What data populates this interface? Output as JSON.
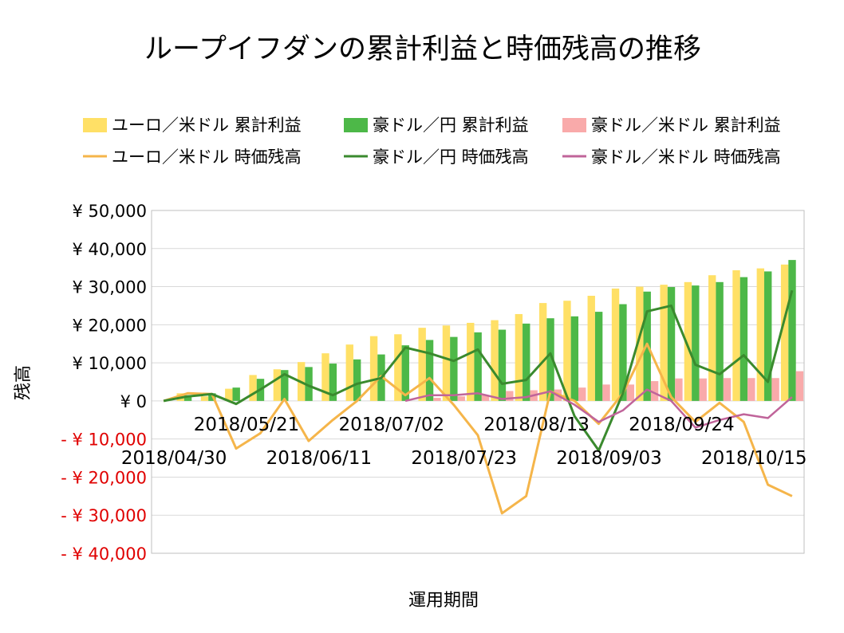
{
  "chart_data": {
    "type": "bar",
    "title": "ループイフダンの累計利益と時価残高の推移",
    "xlabel": "運用期間",
    "ylabel": "残高",
    "ylim": [
      -40000,
      50000
    ],
    "y_ticks": [
      50000,
      40000,
      30000,
      20000,
      10000,
      0,
      -10000,
      -20000,
      -30000,
      -40000
    ],
    "y_tick_labels": [
      "¥ 50,000",
      "¥ 40,000",
      "¥ 30,000",
      "¥ 20,000",
      "¥ 10,000",
      "¥ 0",
      "- ¥ 10,000",
      "- ¥ 20,000",
      "- ¥ 30,000",
      "- ¥ 40,000"
    ],
    "x_tick_labels_upper": [
      "2018/05/21",
      "2018/07/02",
      "2018/08/13",
      "2018/09/24"
    ],
    "x_tick_labels_lower": [
      "2018/04/30",
      "2018/06/11",
      "2018/07/23",
      "2018/09/03",
      "2018/10/15"
    ],
    "x_count": 27,
    "grid": true,
    "legend_position": "top",
    "colors": {
      "eur_profit": "#FFE066",
      "aud_jpy_profit": "#4DB848",
      "aud_usd_profit": "#F9AAAA",
      "eur_value": "#F5B54A",
      "aud_jpy_value": "#3A8A2E",
      "aud_usd_value": "#C0649A",
      "negative_label": "#E00000",
      "axis": "#BFBFBF"
    },
    "bar_series": [
      {
        "name": "ユーロ／米ドル 累計利益",
        "values": [
          0,
          2000,
          1200,
          3200,
          6800,
          8300,
          10200,
          12500,
          14800,
          17000,
          17500,
          19200,
          19800,
          20500,
          21200,
          22800,
          25700,
          26300,
          27600,
          29500,
          30000,
          30500,
          31200,
          33000,
          34300,
          34800,
          35800
        ]
      },
      {
        "name": "豪ドル／円 累計利益",
        "values": [
          0,
          1500,
          2000,
          3500,
          5800,
          8100,
          8900,
          9800,
          10900,
          12200,
          14600,
          16000,
          16800,
          18000,
          18700,
          20300,
          21700,
          22200,
          23400,
          25400,
          28700,
          29900,
          30300,
          31200,
          32500,
          34000,
          37000
        ]
      },
      {
        "name": "豪ドル／米ドル 累計利益",
        "values": [
          0,
          0,
          0,
          0,
          0,
          0,
          0,
          0,
          0,
          0,
          0,
          800,
          1200,
          1500,
          2600,
          2800,
          3000,
          3500,
          4300,
          4300,
          5200,
          5900,
          5900,
          6000,
          6000,
          6000,
          7800
        ]
      }
    ],
    "line_series": [
      {
        "name": "ユーロ／米ドル 時価残高",
        "values": [
          0,
          2000,
          1800,
          -12500,
          -8500,
          500,
          -10500,
          -5000,
          0,
          6500,
          1500,
          6000,
          -1000,
          -9000,
          -29500,
          -25000,
          2500,
          0,
          -6000,
          2000,
          15000,
          1000,
          -5500,
          -500,
          -5500,
          -22000,
          -25000
        ]
      },
      {
        "name": "豪ドル／円 時価残高",
        "values": [
          0,
          1200,
          1800,
          -800,
          3000,
          7000,
          4000,
          1500,
          4500,
          6000,
          14000,
          12500,
          10500,
          13500,
          4500,
          5500,
          12500,
          -4000,
          -13000,
          2000,
          23500,
          25000,
          9500,
          7000,
          12000,
          5000,
          29000
        ]
      },
      {
        "name": "豪ドル／米ドル 時価残高",
        "values": [
          null,
          null,
          null,
          null,
          null,
          null,
          null,
          null,
          null,
          null,
          0,
          1500,
          1500,
          2000,
          500,
          1000,
          2500,
          -1000,
          -5500,
          -2500,
          3000,
          0,
          -7000,
          -5000,
          -3500,
          -4500,
          1000
        ]
      }
    ]
  }
}
